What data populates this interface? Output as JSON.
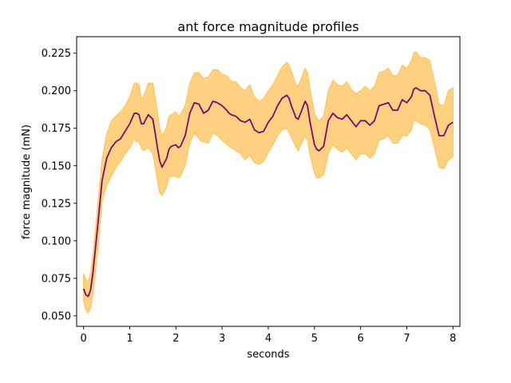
{
  "chart_data": {
    "type": "line",
    "title": "ant force magnitude profiles",
    "xlabel": "seconds",
    "ylabel": "force magnitude (mN)",
    "xlim": [
      -0.15,
      8.15
    ],
    "ylim": [
      0.043,
      0.236
    ],
    "xticks": [
      0,
      1,
      2,
      3,
      4,
      5,
      6,
      7,
      8
    ],
    "xtick_labels": [
      "0",
      "1",
      "2",
      "3",
      "4",
      "5",
      "6",
      "7",
      "8"
    ],
    "yticks": [
      0.05,
      0.075,
      0.1,
      0.125,
      0.15,
      0.175,
      0.2,
      0.225
    ],
    "ytick_labels": [
      "0.050",
      "0.075",
      "0.100",
      "0.125",
      "0.150",
      "0.175",
      "0.200",
      "0.225"
    ],
    "grid": false,
    "legend": "none",
    "colors": {
      "line": "#7b0a6b",
      "band": "#ffcf7a",
      "band_edge": "#ffc04d"
    },
    "series": [
      {
        "x": [
          0.0,
          0.05,
          0.1,
          0.15,
          0.2,
          0.3,
          0.4,
          0.5,
          0.6,
          0.7,
          0.8,
          0.9,
          1.0,
          1.1,
          1.15,
          1.2,
          1.25,
          1.3,
          1.4,
          1.5,
          1.55,
          1.6,
          1.65,
          1.7,
          1.8,
          1.85,
          1.9,
          2.0,
          2.05,
          2.1,
          2.2,
          2.3,
          2.4,
          2.5,
          2.55,
          2.6,
          2.7,
          2.8,
          2.9,
          3.0,
          3.1,
          3.15,
          3.2,
          3.3,
          3.4,
          3.5,
          3.6,
          3.7,
          3.8,
          3.9,
          4.0,
          4.1,
          4.2,
          4.3,
          4.4,
          4.45,
          4.5,
          4.6,
          4.65,
          4.7,
          4.8,
          4.85,
          4.9,
          5.0,
          5.05,
          5.1,
          5.2,
          5.3,
          5.4,
          5.5,
          5.6,
          5.7,
          5.8,
          5.9,
          6.0,
          6.1,
          6.2,
          6.3,
          6.4,
          6.5,
          6.6,
          6.7,
          6.8,
          6.9,
          7.0,
          7.1,
          7.15,
          7.2,
          7.3,
          7.4,
          7.5,
          7.6,
          7.7,
          7.8,
          7.9,
          8.0
        ],
        "y": [
          0.068,
          0.064,
          0.063,
          0.067,
          0.078,
          0.108,
          0.14,
          0.155,
          0.162,
          0.166,
          0.168,
          0.173,
          0.178,
          0.185,
          0.185,
          0.184,
          0.178,
          0.178,
          0.184,
          0.181,
          0.172,
          0.162,
          0.153,
          0.149,
          0.155,
          0.161,
          0.163,
          0.164,
          0.162,
          0.163,
          0.17,
          0.185,
          0.192,
          0.191,
          0.188,
          0.185,
          0.187,
          0.193,
          0.192,
          0.19,
          0.187,
          0.185,
          0.184,
          0.183,
          0.18,
          0.179,
          0.181,
          0.174,
          0.172,
          0.173,
          0.179,
          0.183,
          0.19,
          0.195,
          0.197,
          0.195,
          0.19,
          0.182,
          0.181,
          0.185,
          0.193,
          0.19,
          0.18,
          0.164,
          0.161,
          0.16,
          0.163,
          0.18,
          0.185,
          0.182,
          0.181,
          0.184,
          0.18,
          0.176,
          0.18,
          0.18,
          0.177,
          0.18,
          0.19,
          0.191,
          0.192,
          0.187,
          0.187,
          0.194,
          0.192,
          0.196,
          0.201,
          0.202,
          0.2,
          0.2,
          0.197,
          0.183,
          0.17,
          0.17,
          0.177,
          0.179
        ],
        "lower": [
          0.06,
          0.054,
          0.052,
          0.055,
          0.064,
          0.092,
          0.126,
          0.137,
          0.143,
          0.149,
          0.153,
          0.158,
          0.162,
          0.168,
          0.166,
          0.166,
          0.162,
          0.16,
          0.162,
          0.158,
          0.149,
          0.14,
          0.132,
          0.13,
          0.136,
          0.142,
          0.143,
          0.143,
          0.142,
          0.143,
          0.15,
          0.165,
          0.172,
          0.168,
          0.166,
          0.166,
          0.165,
          0.172,
          0.17,
          0.167,
          0.164,
          0.163,
          0.162,
          0.16,
          0.158,
          0.154,
          0.157,
          0.152,
          0.151,
          0.153,
          0.159,
          0.164,
          0.17,
          0.174,
          0.175,
          0.172,
          0.169,
          0.162,
          0.16,
          0.164,
          0.17,
          0.167,
          0.158,
          0.145,
          0.142,
          0.142,
          0.144,
          0.158,
          0.164,
          0.161,
          0.159,
          0.162,
          0.158,
          0.154,
          0.158,
          0.158,
          0.155,
          0.158,
          0.167,
          0.168,
          0.17,
          0.165,
          0.165,
          0.17,
          0.17,
          0.174,
          0.18,
          0.18,
          0.178,
          0.177,
          0.174,
          0.162,
          0.149,
          0.148,
          0.154,
          0.156
        ],
        "upper": [
          0.078,
          0.074,
          0.073,
          0.078,
          0.09,
          0.122,
          0.154,
          0.171,
          0.18,
          0.183,
          0.186,
          0.19,
          0.196,
          0.205,
          0.205,
          0.204,
          0.195,
          0.196,
          0.205,
          0.205,
          0.196,
          0.186,
          0.175,
          0.17,
          0.176,
          0.183,
          0.184,
          0.186,
          0.183,
          0.184,
          0.19,
          0.205,
          0.212,
          0.212,
          0.21,
          0.208,
          0.209,
          0.214,
          0.214,
          0.211,
          0.21,
          0.208,
          0.206,
          0.206,
          0.202,
          0.2,
          0.204,
          0.196,
          0.193,
          0.195,
          0.2,
          0.204,
          0.21,
          0.216,
          0.219,
          0.217,
          0.213,
          0.204,
          0.203,
          0.207,
          0.215,
          0.212,
          0.202,
          0.185,
          0.182,
          0.18,
          0.183,
          0.2,
          0.207,
          0.204,
          0.203,
          0.206,
          0.201,
          0.198,
          0.2,
          0.203,
          0.2,
          0.203,
          0.212,
          0.213,
          0.215,
          0.21,
          0.21,
          0.217,
          0.215,
          0.22,
          0.225,
          0.226,
          0.222,
          0.222,
          0.22,
          0.206,
          0.191,
          0.19,
          0.2,
          0.202
        ]
      }
    ]
  }
}
